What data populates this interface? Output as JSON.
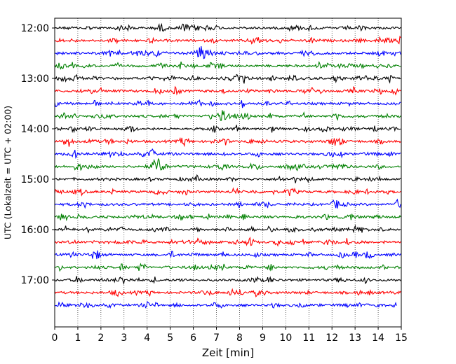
{
  "chart_data": {
    "type": "line",
    "title": "",
    "xlabel": "Zeit  [min]",
    "ylabel": "UTC (Lokalzeit = UTC + 02:00)",
    "xlim": [
      0,
      15
    ],
    "x_ticks": [
      0,
      1,
      2,
      3,
      4,
      5,
      6,
      7,
      8,
      9,
      10,
      11,
      12,
      13,
      14,
      15
    ],
    "x_tick_labels": [
      "0",
      "1",
      "2",
      "3",
      "4",
      "5",
      "6",
      "7",
      "8",
      "9",
      "10",
      "11",
      "12",
      "13",
      "14",
      "15"
    ],
    "y_tick_labels": [
      "12:00",
      "13:00",
      "14:00",
      "15:00",
      "16:00",
      "17:00"
    ],
    "y_tick_rows": [
      0,
      4,
      8,
      12,
      16,
      20
    ],
    "grid": "vertical dotted lines at each minute",
    "row_colors": [
      "#000000",
      "#ff0000",
      "#0000ff",
      "#008000"
    ],
    "trace_start_minutes": [
      "12:00",
      "12:15",
      "12:30",
      "12:45",
      "13:00",
      "13:15",
      "13:30",
      "13:45",
      "14:00",
      "14:15",
      "14:30",
      "14:45",
      "15:00",
      "15:15",
      "15:30",
      "15:45",
      "16:00",
      "16:15",
      "16:30",
      "16:45",
      "17:00",
      "17:15",
      "17:30"
    ],
    "trace_end_minute_last_row": 14.8,
    "notable_events": [
      {
        "row": 2,
        "minute": 6.4,
        "amplitude": 1.0
      },
      {
        "row": 11,
        "minute": 4.5,
        "amplitude": 0.9
      },
      {
        "row": 10,
        "minute": 0.9,
        "amplitude": 0.4
      },
      {
        "row": 8,
        "minute": 3.3,
        "amplitude": 0.35
      },
      {
        "row": 19,
        "minute": 9.35,
        "amplitude": 0.35
      },
      {
        "row": 18,
        "minute": 13.6,
        "amplitude": 0.35
      },
      {
        "row": 4,
        "minute": 14.5,
        "amplitude": 0.35
      },
      {
        "row": 1,
        "minute": 2.6,
        "amplitude": 0.3
      },
      {
        "row": 22,
        "minute": 4.0,
        "amplitude": 0.3
      }
    ]
  }
}
